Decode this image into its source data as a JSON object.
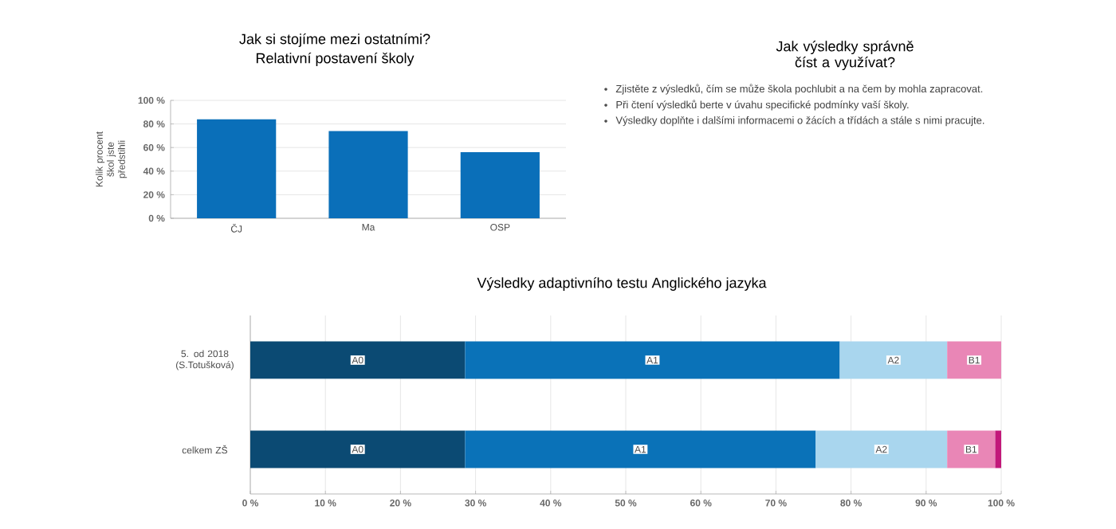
{
  "chart_data": [
    {
      "type": "bar",
      "title": "Jak si stojíme mezi ostatními?",
      "subtitle": "Relativní postavení školy",
      "ylabel": "Kolik procent škol jste předstihli",
      "categories": [
        "ČJ",
        "Ma",
        "OSP"
      ],
      "values": [
        84,
        74,
        56
      ],
      "color": "#0a6fb9",
      "ylim": [
        0,
        100
      ],
      "yticks": [
        {
          "value": 0,
          "label": "0 %"
        },
        {
          "value": 20,
          "label": "20 %"
        },
        {
          "value": 40,
          "label": "40 %"
        },
        {
          "value": 60,
          "label": "60 %"
        },
        {
          "value": 80,
          "label": "80 %"
        },
        {
          "value": 100,
          "label": "100 %"
        }
      ],
      "grid": "y"
    },
    {
      "type": "other",
      "title": "Jak výsledky správně číst a využívat?",
      "annotations": [
        "Zjistěte z výsledků, čím se může škola pochlubit a na čem by mohla zapracovat.",
        "Při čtení výsledků berte v úvahu specifické podmínky vaší školy.",
        "Výsledky doplňte i dalšími informacemi o žácích a třídách a stále s nimi pracujte."
      ]
    },
    {
      "type": "bar",
      "orientation": "horizontal",
      "stacked": true,
      "title": "Výsledky adaptivního testu Anglického jazyka",
      "categories": [
        "5. od 2018 (S.Totušková)",
        "celkem ZŠ"
      ],
      "series": [
        {
          "name": "A0",
          "color": "#0b4a73",
          "values": [
            28.6,
            28.6
          ]
        },
        {
          "name": "A1",
          "color": "#0a72b8",
          "values": [
            49.9,
            46.7
          ]
        },
        {
          "name": "A2",
          "color": "#a9d6ee",
          "values": [
            14.3,
            17.5
          ]
        },
        {
          "name": "B1",
          "color": "#e986b6",
          "values": [
            7.2,
            6.4
          ]
        },
        {
          "color": "#c2187a",
          "values": [
            null,
            0.8
          ]
        }
      ],
      "xlim": [
        0,
        100
      ],
      "xticks": [
        {
          "value": 0,
          "label": "0 %"
        },
        {
          "value": 10,
          "label": "10 %"
        },
        {
          "value": 20,
          "label": "20 %"
        },
        {
          "value": 30,
          "label": "30 %"
        },
        {
          "value": 40,
          "label": "40 %"
        },
        {
          "value": 50,
          "label": "50 %"
        },
        {
          "value": 60,
          "label": "60 %"
        },
        {
          "value": 70,
          "label": "70 %"
        },
        {
          "value": 80,
          "label": "80 %"
        },
        {
          "value": 90,
          "label": "90 %"
        },
        {
          "value": 100,
          "label": "100 %"
        }
      ],
      "grid": "x"
    }
  ]
}
